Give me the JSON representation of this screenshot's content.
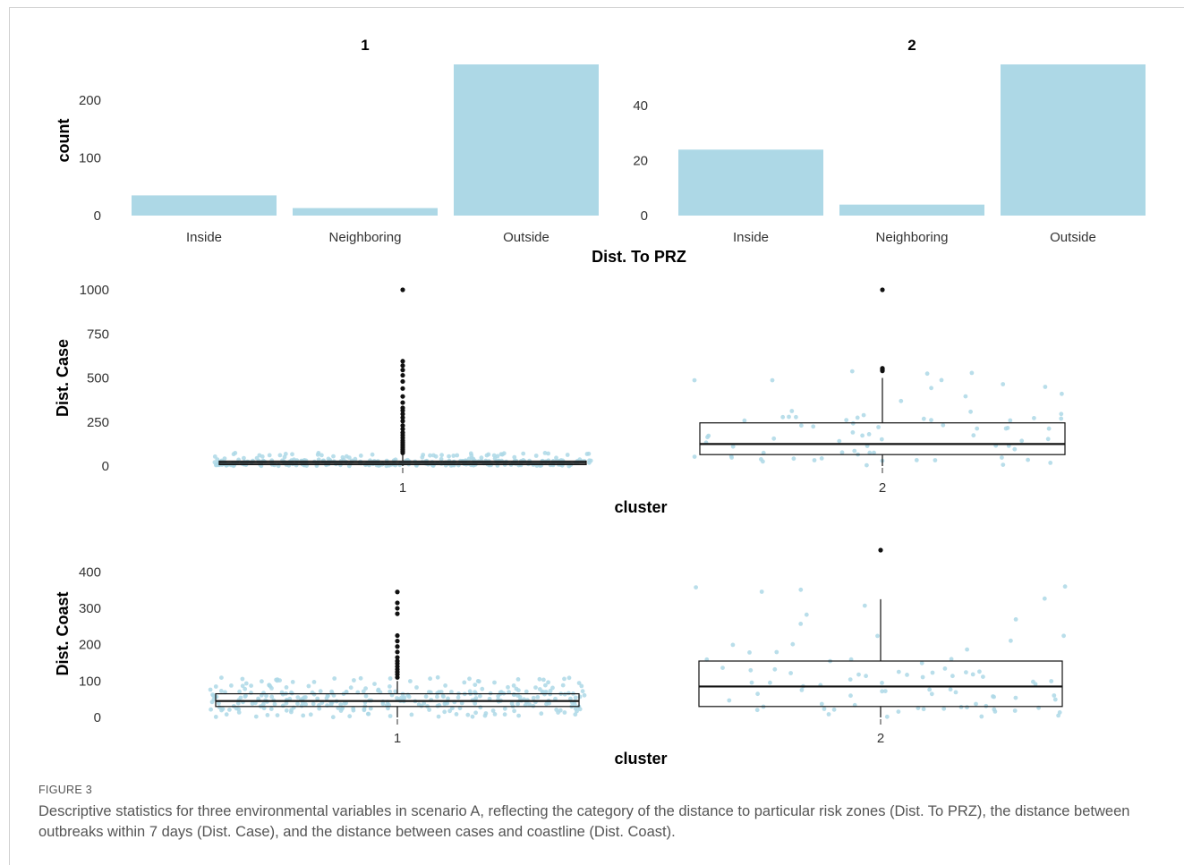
{
  "figure": {
    "label": "FIGURE 3",
    "caption": "Descriptive statistics for three environmental variables in scenario A, reflecting the category of the distance to particular risk zones (Dist. To PRZ), the distance between outbreaks within 7 days (Dist. Case), and the distance between cases and coastline (Dist. Coast)."
  },
  "colors": {
    "bar_fill": "#add8e6",
    "point": "#add8e6",
    "outlier": "#111111",
    "box_line": "#111111"
  },
  "chart_data": [
    {
      "type": "bar",
      "facet_label": "1",
      "categories": [
        "Inside",
        "Neighboring",
        "Outside"
      ],
      "values": [
        35,
        13,
        262
      ],
      "ylim": [
        0,
        262
      ],
      "yticks": [
        0,
        100,
        200
      ],
      "ylabel": "count",
      "xlabel": "Dist. To PRZ",
      "grid": false
    },
    {
      "type": "bar",
      "facet_label": "2",
      "categories": [
        "Inside",
        "Neighboring",
        "Outside"
      ],
      "values": [
        24,
        4,
        55
      ],
      "ylim": [
        0,
        55
      ],
      "yticks": [
        0,
        20,
        40
      ],
      "ylabel": "",
      "xlabel": "Dist. To PRZ",
      "grid": false
    },
    {
      "type": "box",
      "ylabel": "Dist. Case",
      "xlabel": "cluster",
      "ylim": [
        0,
        1000
      ],
      "yticks": [
        0,
        250,
        500,
        750,
        1000
      ],
      "grid": false,
      "boxes": [
        {
          "category": "1",
          "q1": 8,
          "median": 18,
          "q3": 28,
          "whisker_low": 0,
          "whisker_high": 65,
          "outliers": [
            75,
            85,
            95,
            105,
            115,
            125,
            135,
            145,
            160,
            175,
            190,
            210,
            230,
            255,
            275,
            295,
            315,
            330,
            360,
            395,
            440,
            480,
            515,
            545,
            570,
            595,
            1000
          ]
        },
        {
          "category": "2",
          "q1": 65,
          "median": 125,
          "q3": 245,
          "whisker_low": 0,
          "whisker_high": 500,
          "outliers": [
            540,
            545,
            550,
            555,
            1000
          ]
        }
      ]
    },
    {
      "type": "box",
      "ylabel": "Dist. Coast",
      "xlabel": "cluster",
      "ylim": [
        0,
        460
      ],
      "yticks": [
        0,
        100,
        200,
        300,
        400
      ],
      "grid": false,
      "boxes": [
        {
          "category": "1",
          "q1": 30,
          "median": 45,
          "q3": 65,
          "whisker_low": 0,
          "whisker_high": 100,
          "outliers": [
            110,
            118,
            125,
            132,
            140,
            148,
            155,
            165,
            180,
            195,
            210,
            225,
            285,
            300,
            315,
            345
          ]
        },
        {
          "category": "2",
          "q1": 30,
          "median": 85,
          "q3": 155,
          "whisker_low": 0,
          "whisker_high": 325,
          "outliers": [
            460
          ]
        }
      ]
    }
  ]
}
